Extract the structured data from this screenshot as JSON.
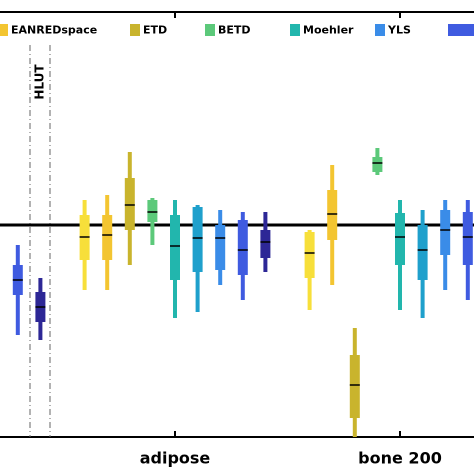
{
  "chart_data": {
    "type": "box",
    "categories": [
      null,
      "adipose",
      "bone 200"
    ],
    "annotation": "HLUT",
    "reference_line": 0,
    "ylim": [
      -2.12,
      1.85
    ],
    "series": [
      {
        "color": "#f7df3a",
        "values": [
          null,
          {
            "low": -0.65,
            "q1": -0.35,
            "median": -0.12,
            "q3": 0.1,
            "high": 0.25
          },
          {
            "low": -0.85,
            "q1": -0.53,
            "median": -0.28,
            "q3": -0.07,
            "high": -0.05
          }
        ]
      },
      {
        "name": "EANREDspace",
        "color": "#f3c531",
        "values": [
          null,
          {
            "low": -0.65,
            "q1": -0.35,
            "median": -0.1,
            "q3": 0.1,
            "high": 0.3
          },
          {
            "low": -0.6,
            "q1": -0.15,
            "median": 0.11,
            "q3": 0.35,
            "high": 0.6
          }
        ]
      },
      {
        "name": "ETD",
        "color": "#c9b42d",
        "values": [
          null,
          {
            "low": -0.4,
            "q1": -0.05,
            "median": 0.2,
            "q3": 0.47,
            "high": 0.73
          },
          {
            "low": -2.12,
            "q1": -1.93,
            "median": -1.6,
            "q3": -1.3,
            "high": -1.03
          }
        ]
      },
      {
        "name": "BETD",
        "color": "#5cc97a",
        "values": [
          null,
          {
            "low": -0.2,
            "q1": 0.03,
            "median": 0.13,
            "q3": 0.25,
            "high": 0.27
          },
          {
            "low": 0.5,
            "q1": 0.53,
            "median": 0.62,
            "q3": 0.68,
            "high": 0.77
          }
        ]
      },
      {
        "name": "Moehler",
        "color": "#22b6ad",
        "values": [
          null,
          {
            "low": -0.93,
            "q1": -0.55,
            "median": -0.21,
            "q3": 0.1,
            "high": 0.25
          },
          {
            "low": -0.85,
            "q1": -0.4,
            "median": -0.12,
            "q3": 0.12,
            "high": 0.25
          }
        ]
      },
      {
        "color": "#1fa0cc",
        "values": [
          null,
          {
            "low": -0.87,
            "q1": -0.47,
            "median": -0.13,
            "q3": 0.18,
            "high": 0.2
          },
          {
            "low": -0.93,
            "q1": -0.55,
            "median": -0.25,
            "q3": 0,
            "high": 0.15
          }
        ]
      },
      {
        "name": "YLS",
        "color": "#3a8ce8",
        "values": [
          null,
          {
            "low": -0.6,
            "q1": -0.45,
            "median": -0.13,
            "q3": 0,
            "high": 0.15
          },
          {
            "low": -0.65,
            "q1": -0.3,
            "median": -0.05,
            "q3": 0.15,
            "high": 0.25
          }
        ]
      },
      {
        "color": "#3f5be0",
        "values": [
          {
            "low": -1.1,
            "q1": -0.7,
            "median": -0.55,
            "q3": -0.4,
            "high": -0.2
          },
          {
            "low": -0.75,
            "q1": -0.5,
            "median": -0.25,
            "q3": 0.05,
            "high": 0.13
          },
          {
            "low": -0.75,
            "q1": -0.4,
            "median": -0.12,
            "q3": 0.13,
            "high": 0.25
          }
        ]
      },
      {
        "color": "#2d2796",
        "values": [
          {
            "low": -1.15,
            "q1": -0.97,
            "median": -0.82,
            "q3": -0.67,
            "high": -0.53
          },
          {
            "low": -0.47,
            "q1": -0.33,
            "median": -0.17,
            "q3": -0.05,
            "high": 0.13
          },
          null
        ]
      }
    ]
  }
}
